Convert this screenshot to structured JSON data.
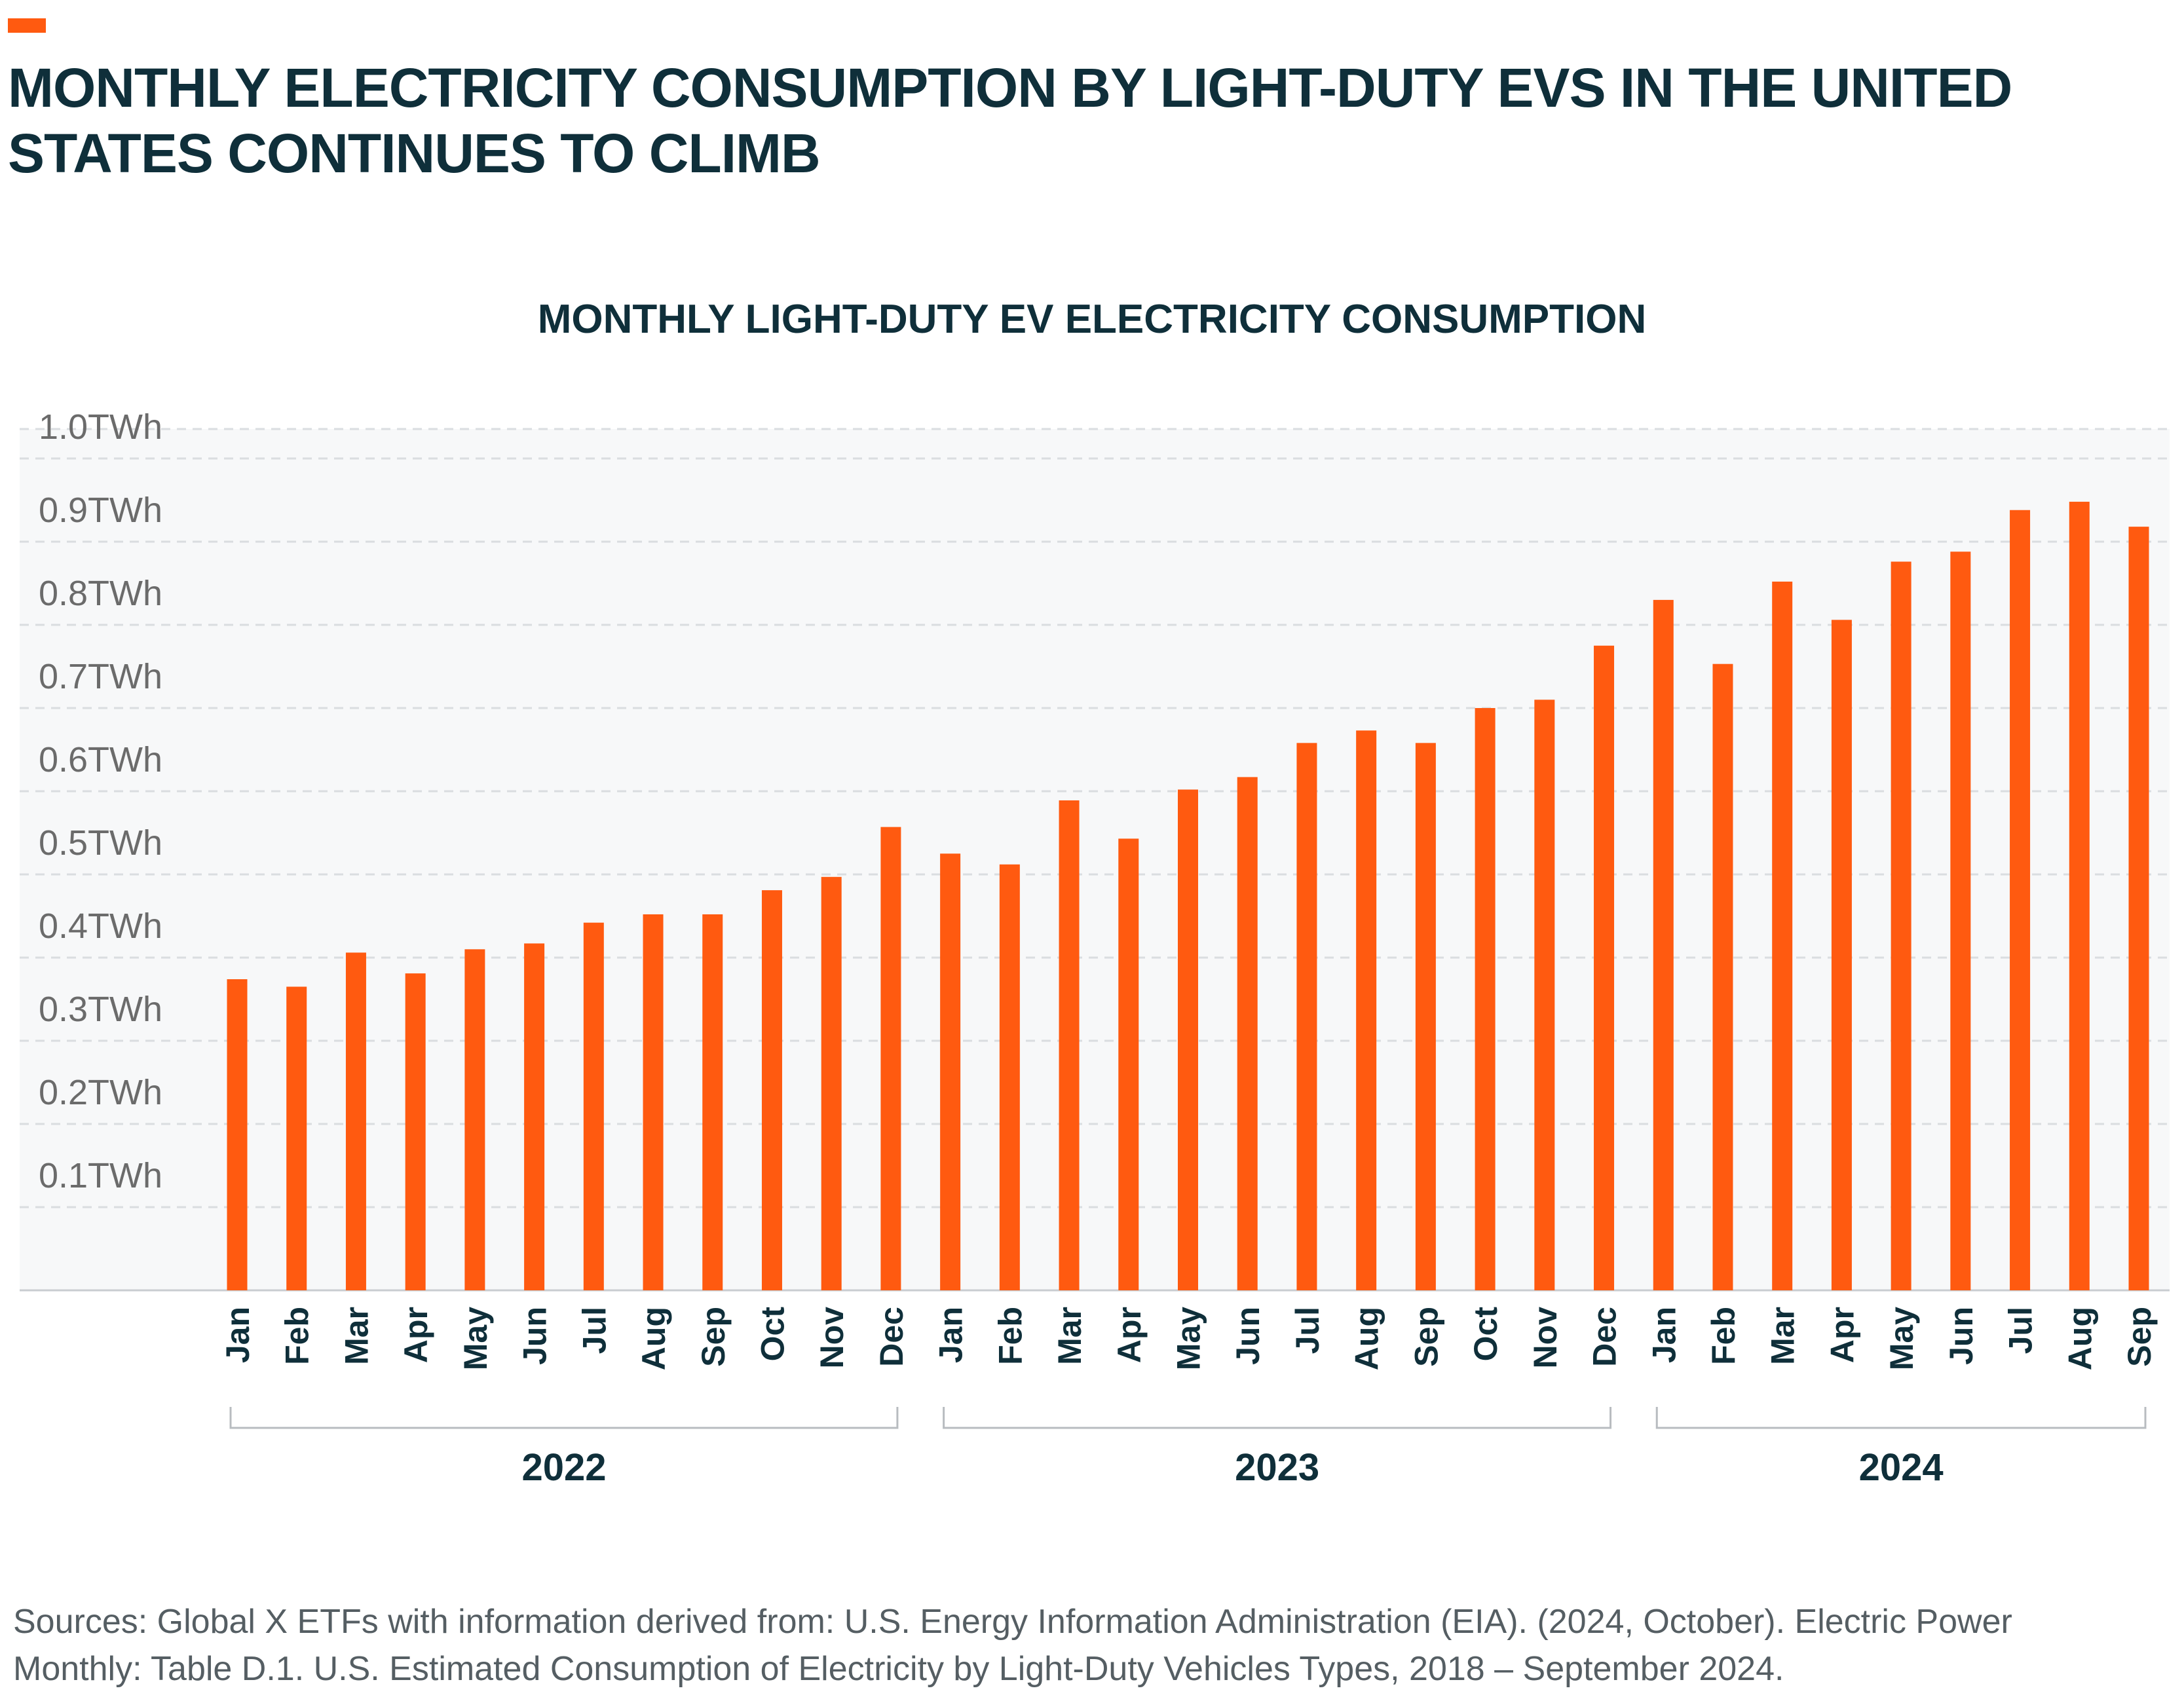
{
  "header": {
    "title": "MONTHLY ELECTRICITY CONSUMPTION BY LIGHT-DUTY EVS IN THE UNITED STATES CONTINUES TO CLIMB"
  },
  "colors": {
    "accent": "#FF5A10",
    "bar": "#FF5A10",
    "title_text": "#0F2F3A",
    "plot_background": "#F7F8F9",
    "gridline": "#DADDE0",
    "tick_label": "#6b6b6b"
  },
  "chart_data": {
    "type": "bar",
    "title": "MONTHLY LIGHT-DUTY EV ELECTRICITY CONSUMPTION",
    "xlabel": "",
    "ylabel": "",
    "ylim": [
      0,
      1.0
    ],
    "y_ticks": [
      {
        "value": 0.1,
        "label": "0.1TWh"
      },
      {
        "value": 0.2,
        "label": "0.2TWh"
      },
      {
        "value": 0.3,
        "label": "0.3TWh"
      },
      {
        "value": 0.4,
        "label": "0.4TWh"
      },
      {
        "value": 0.5,
        "label": "0.5TWh"
      },
      {
        "value": 0.6,
        "label": "0.6TWh"
      },
      {
        "value": 0.7,
        "label": "0.7TWh"
      },
      {
        "value": 0.8,
        "label": "0.8TWh"
      },
      {
        "value": 0.9,
        "label": "0.9TWh"
      },
      {
        "value": 1.0,
        "label": "1.0TWh"
      }
    ],
    "grid": true,
    "legend": "none",
    "categories": [
      "Jan",
      "Feb",
      "Mar",
      "Apr",
      "May",
      "Jun",
      "Jul",
      "Aug",
      "Sep",
      "Oct",
      "Nov",
      "Dec",
      "Jan",
      "Feb",
      "Mar",
      "Apr",
      "May",
      "Jun",
      "Jul",
      "Aug",
      "Sep",
      "Oct",
      "Nov",
      "Dec",
      "Jan",
      "Feb",
      "Mar",
      "Apr",
      "May",
      "Jun",
      "Jul",
      "Aug",
      "Sep"
    ],
    "values": [
      0.374,
      0.365,
      0.406,
      0.381,
      0.41,
      0.417,
      0.442,
      0.452,
      0.452,
      0.481,
      0.497,
      0.557,
      0.525,
      0.512,
      0.589,
      0.543,
      0.602,
      0.617,
      0.658,
      0.673,
      0.658,
      0.7,
      0.71,
      0.775,
      0.83,
      0.753,
      0.852,
      0.806,
      0.876,
      0.888,
      0.938,
      0.948,
      0.918
    ],
    "groups": [
      {
        "label": "2022",
        "start": 0,
        "end": 11
      },
      {
        "label": "2023",
        "start": 12,
        "end": 23
      },
      {
        "label": "2024",
        "start": 24,
        "end": 32
      }
    ]
  },
  "footer": {
    "sources_line1": "Sources: Global X ETFs with information derived from: U.S. Energy Information Administration (EIA). (2024, October). Electric Power",
    "sources_line2": "Monthly: Table D.1. U.S. Estimated Consumption of Electricity by Light-Duty Vehicles Types, 2018 – September 2024."
  }
}
